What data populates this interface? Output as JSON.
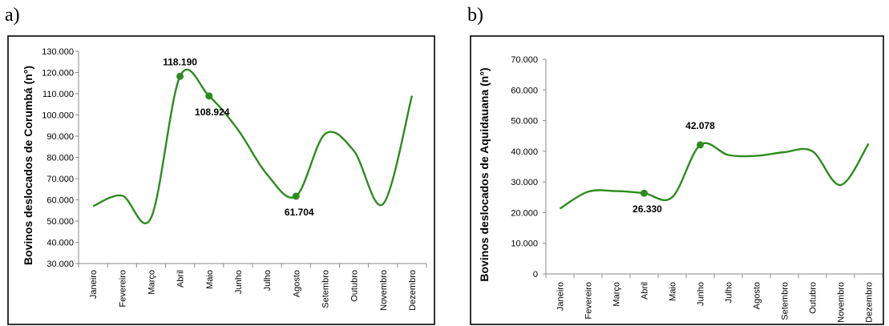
{
  "panels": [
    {
      "letter": "a)"
    },
    {
      "letter": "b)"
    }
  ],
  "chart_data": [
    {
      "type": "line",
      "title": "",
      "xlabel": "",
      "ylabel": "Bovinos deslocados de Corumbá (n°)",
      "categories": [
        "Janeiro",
        "Fevereiro",
        "Março",
        "Abril",
        "Maio",
        "Junho",
        "Julho",
        "Agosto",
        "Setembro",
        "Outubro",
        "Novembro",
        "Dezembro"
      ],
      "values": [
        57000,
        62000,
        51500,
        118190,
        108924,
        93000,
        72000,
        61704,
        91000,
        83000,
        58000,
        109000
      ],
      "ylim": [
        30000,
        130000
      ],
      "yticks": [
        30000,
        40000,
        50000,
        60000,
        70000,
        80000,
        90000,
        100000,
        110000,
        120000,
        130000
      ],
      "ytick_labels": [
        "30.000",
        "40.000",
        "50.000",
        "60.000",
        "70.000",
        "80.000",
        "90.000",
        "100.000",
        "110.000",
        "120.000",
        "130.000"
      ],
      "grid": false,
      "line_color": "#2e8b1f",
      "highlights": [
        {
          "index": 3,
          "label": "118.190",
          "pos": "above"
        },
        {
          "index": 4,
          "label": "108.924",
          "pos": "below"
        },
        {
          "index": 7,
          "label": "61.704",
          "pos": "below"
        }
      ]
    },
    {
      "type": "line",
      "title": "",
      "xlabel": "",
      "ylabel": "Bovinos deslocados de Aquidauana (n°)",
      "categories": [
        "Janeiro",
        "Fevereiro",
        "Março",
        "Abril",
        "Maio",
        "Junho",
        "Julho",
        "Agosto",
        "Setembro",
        "Outubro",
        "Novembro",
        "Dezembro"
      ],
      "values": [
        21300,
        26800,
        27000,
        26330,
        25000,
        42078,
        38800,
        38500,
        39700,
        40000,
        29000,
        42500
      ],
      "ylim": [
        0,
        70000
      ],
      "yticks": [
        0,
        10000,
        20000,
        30000,
        40000,
        50000,
        60000,
        70000
      ],
      "ytick_labels": [
        "0",
        "10.000",
        "20.000",
        "30.000",
        "40.000",
        "50.000",
        "60.000",
        "70.000"
      ],
      "grid": false,
      "line_color": "#2e8b1f",
      "highlights": [
        {
          "index": 3,
          "label": "26.330",
          "pos": "below"
        },
        {
          "index": 5,
          "label": "42.078",
          "pos": "above"
        }
      ]
    }
  ]
}
